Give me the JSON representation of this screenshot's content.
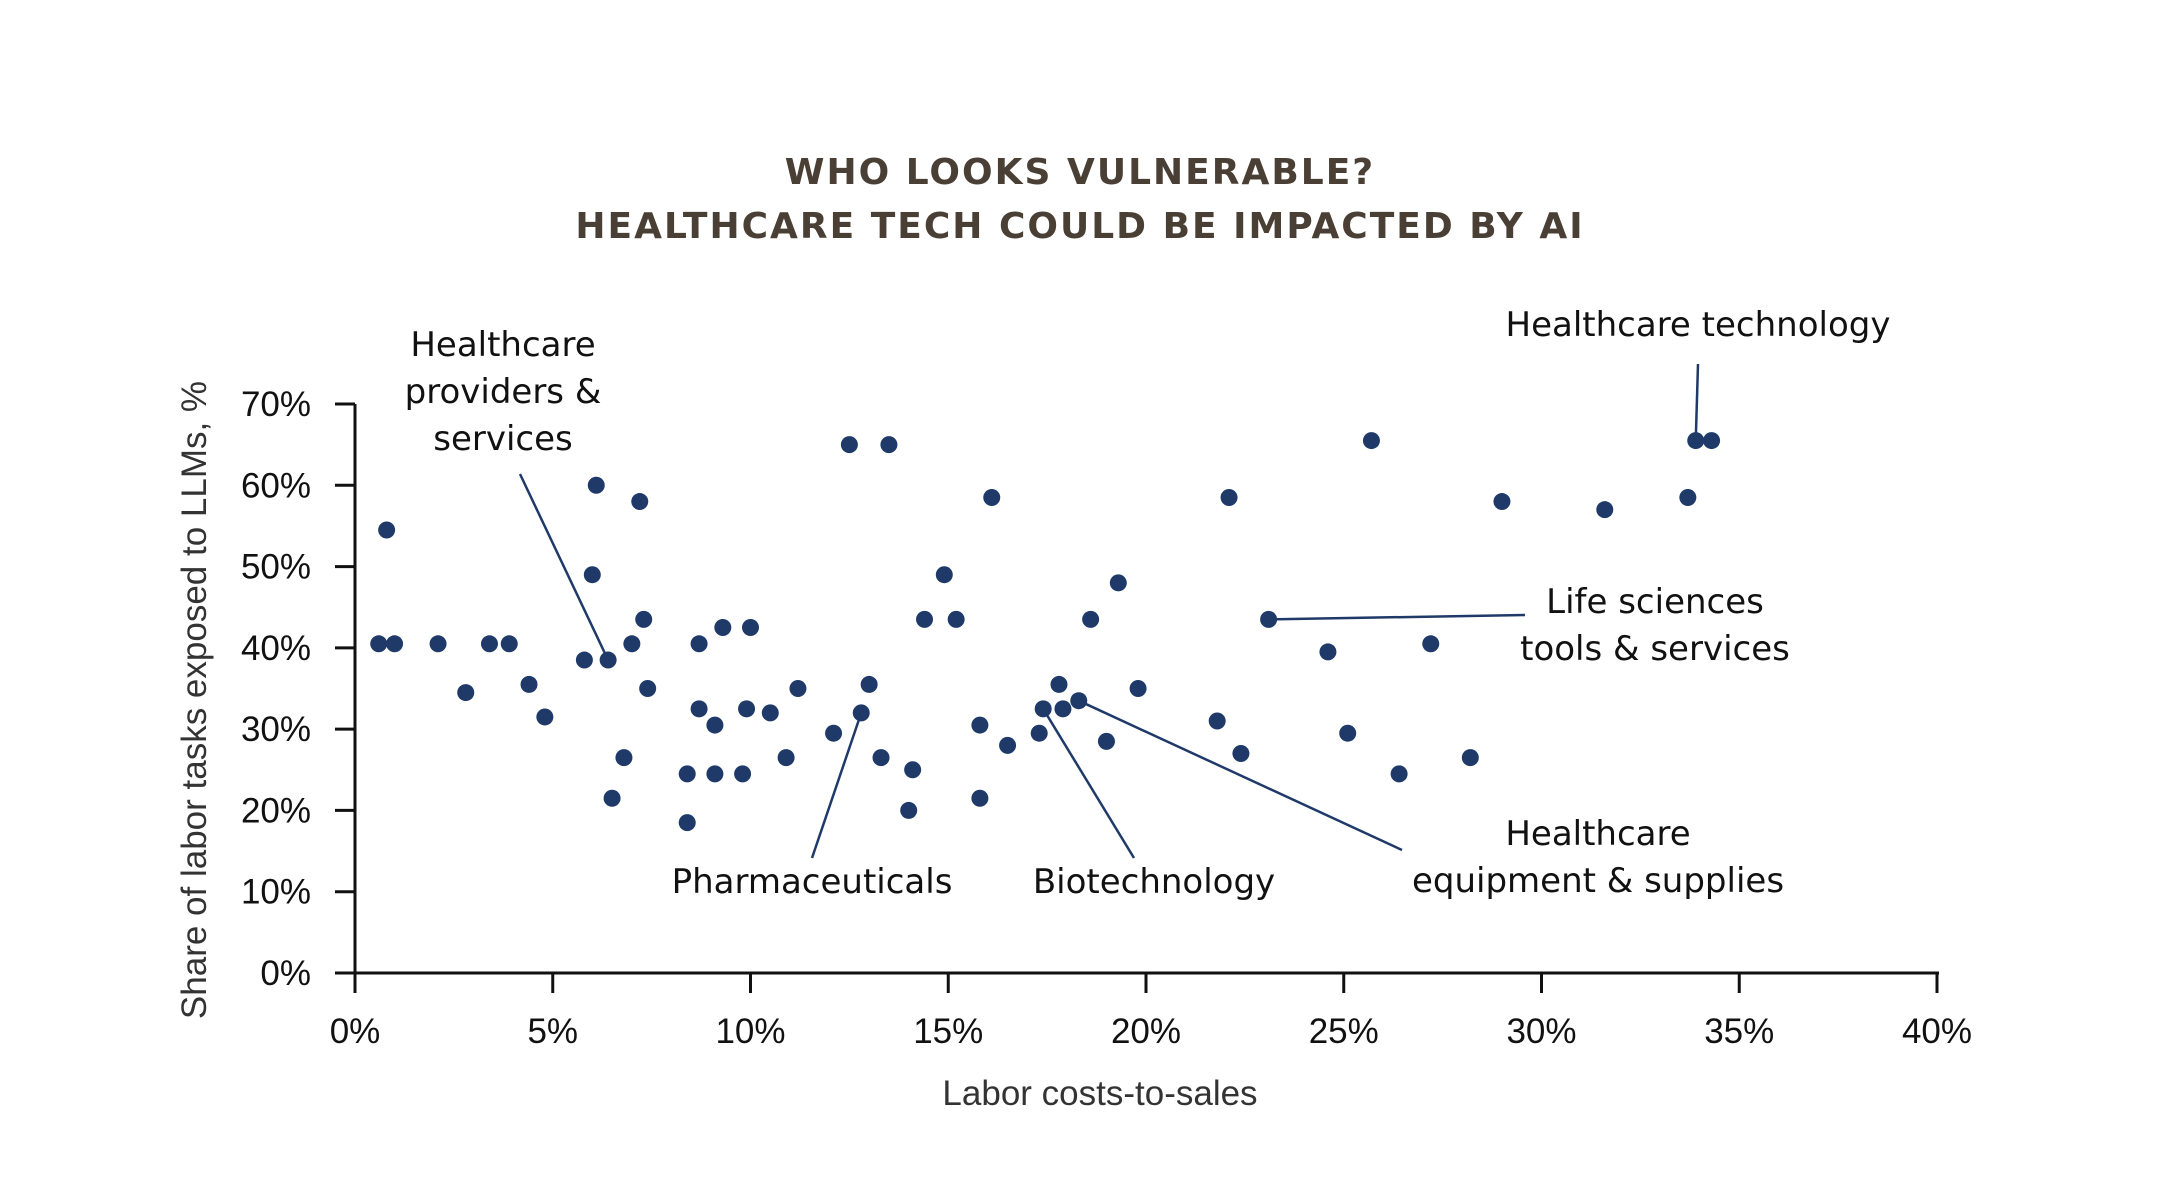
{
  "chart_data": {
    "type": "scatter",
    "title": [
      "WHO LOOKS VULNERABLE?",
      "HEALTHCARE TECH COULD BE IMPACTED BY AI"
    ],
    "xlabel": "Labor costs-to-sales",
    "ylabel": "Share of labor tasks exposed to LLMs, %",
    "xlim": [
      0,
      40
    ],
    "ylim": [
      0,
      70
    ],
    "xticks": [
      "0%",
      "5%",
      "10%",
      "15%",
      "20%",
      "25%",
      "30%",
      "35%",
      "40%"
    ],
    "yticks": [
      "0%",
      "10%",
      "20%",
      "30%",
      "40%",
      "50%",
      "60%",
      "70%"
    ],
    "grid": false,
    "point_color": "#1f3a68",
    "points": [
      [
        0.6,
        40.5
      ],
      [
        0.8,
        54.5
      ],
      [
        1.0,
        40.5
      ],
      [
        2.1,
        40.5
      ],
      [
        2.8,
        34.5
      ],
      [
        3.4,
        40.5
      ],
      [
        3.9,
        40.5
      ],
      [
        4.4,
        35.5
      ],
      [
        4.8,
        31.5
      ],
      [
        5.8,
        38.5
      ],
      [
        6.0,
        49.0
      ],
      [
        6.1,
        60.0
      ],
      [
        6.4,
        38.5
      ],
      [
        6.5,
        21.5
      ],
      [
        6.8,
        26.5
      ],
      [
        7.0,
        40.5
      ],
      [
        7.2,
        58.0
      ],
      [
        7.3,
        43.5
      ],
      [
        7.4,
        35.0
      ],
      [
        8.4,
        18.5
      ],
      [
        8.4,
        24.5
      ],
      [
        8.7,
        40.5
      ],
      [
        8.7,
        32.5
      ],
      [
        9.1,
        30.5
      ],
      [
        9.1,
        24.5
      ],
      [
        9.3,
        42.5
      ],
      [
        9.8,
        24.5
      ],
      [
        9.9,
        32.5
      ],
      [
        10.0,
        42.5
      ],
      [
        10.5,
        32.0
      ],
      [
        10.9,
        26.5
      ],
      [
        11.2,
        35.0
      ],
      [
        12.1,
        29.5
      ],
      [
        12.5,
        65.0
      ],
      [
        12.8,
        32.0
      ],
      [
        13.0,
        35.5
      ],
      [
        13.3,
        26.5
      ],
      [
        13.5,
        65.0
      ],
      [
        14.0,
        20.0
      ],
      [
        14.1,
        25.0
      ],
      [
        14.4,
        43.5
      ],
      [
        14.9,
        49.0
      ],
      [
        15.2,
        43.5
      ],
      [
        15.8,
        30.5
      ],
      [
        15.8,
        21.5
      ],
      [
        16.1,
        58.5
      ],
      [
        16.5,
        28.0
      ],
      [
        17.3,
        29.5
      ],
      [
        17.4,
        32.5
      ],
      [
        17.8,
        35.5
      ],
      [
        17.9,
        32.5
      ],
      [
        18.3,
        33.5
      ],
      [
        18.6,
        43.5
      ],
      [
        19.0,
        28.5
      ],
      [
        19.3,
        48.0
      ],
      [
        19.8,
        35.0
      ],
      [
        21.8,
        31.0
      ],
      [
        22.1,
        58.5
      ],
      [
        22.4,
        27.0
      ],
      [
        23.1,
        43.5
      ],
      [
        24.6,
        39.5
      ],
      [
        25.1,
        29.5
      ],
      [
        25.7,
        65.5
      ],
      [
        26.4,
        24.5
      ],
      [
        27.2,
        40.5
      ],
      [
        28.2,
        26.5
      ],
      [
        29.0,
        58.0
      ],
      [
        31.6,
        57.0
      ],
      [
        33.7,
        58.5
      ],
      [
        33.9,
        65.5
      ],
      [
        34.3,
        65.5
      ]
    ],
    "annotations": [
      {
        "lines": [
          "Healthcare",
          "providers &",
          "services"
        ],
        "target": [
          6.4,
          38.5
        ]
      },
      {
        "lines": [
          "Healthcare technology"
        ],
        "target": [
          33.9,
          65.5
        ]
      },
      {
        "lines": [
          "Life sciences",
          "tools & services"
        ],
        "target": [
          23.1,
          43.5
        ]
      },
      {
        "lines": [
          "Pharmaceuticals"
        ],
        "target": [
          12.8,
          32.0
        ]
      },
      {
        "lines": [
          "Biotechnology"
        ],
        "target": [
          17.4,
          32.5
        ]
      },
      {
        "lines": [
          "Healthcare",
          "equipment & supplies"
        ],
        "target": [
          18.3,
          33.5
        ]
      }
    ]
  }
}
